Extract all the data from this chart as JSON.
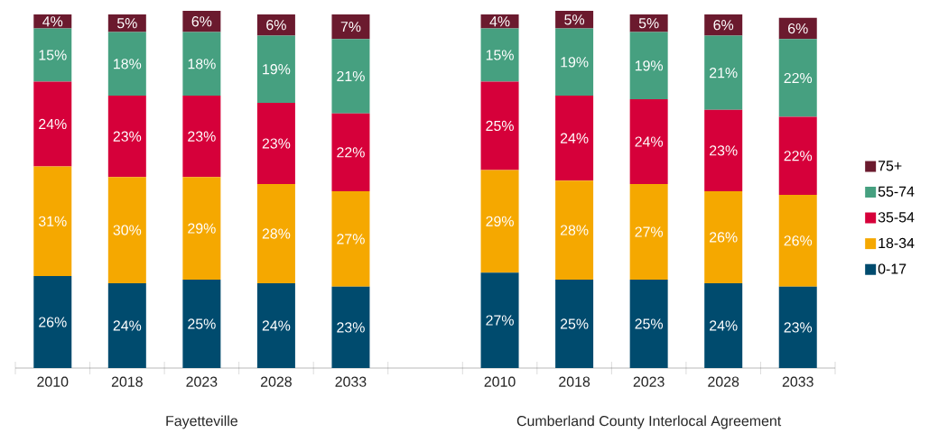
{
  "chart_data": {
    "type": "bar",
    "stacked": true,
    "legend": "right",
    "categories": [
      "2010",
      "2018",
      "2023",
      "2028",
      "2033",
      null,
      "2010",
      "2018",
      "2023",
      "2028",
      "2033"
    ],
    "series": [
      {
        "name": "0-17",
        "color": "#004b6e",
        "values": [
          26,
          24,
          25,
          24,
          23,
          null,
          27,
          25,
          25,
          24,
          23
        ],
        "value_labels": [
          "26%",
          "24%",
          "25%",
          "24%",
          "23%",
          null,
          "27%",
          "25%",
          "25%",
          "24%",
          "23%"
        ]
      },
      {
        "name": "18-34",
        "color": "#f5a800",
        "values": [
          31,
          30,
          29,
          28,
          27,
          null,
          29,
          28,
          27,
          26,
          26
        ],
        "value_labels": [
          "31%",
          "30%",
          "29%",
          "28%",
          "27%",
          null,
          "29%",
          "28%",
          "27%",
          "26%",
          "26%"
        ]
      },
      {
        "name": "35-54",
        "color": "#d6003a",
        "values": [
          24,
          23,
          23,
          23,
          22,
          null,
          25,
          24,
          24,
          23,
          22
        ],
        "value_labels": [
          "24%",
          "23%",
          "23%",
          "23%",
          "22%",
          null,
          "25%",
          "24%",
          "24%",
          "23%",
          "22%"
        ]
      },
      {
        "name": "55-74",
        "color": "#46a080",
        "values": [
          15,
          18,
          18,
          19,
          21,
          null,
          15,
          19,
          19,
          21,
          22
        ],
        "value_labels": [
          "15%",
          "18%",
          "18%",
          "19%",
          "21%",
          null,
          "15%",
          "19%",
          "19%",
          "21%",
          "22%"
        ]
      },
      {
        "name": "75+",
        "color": "#6b1a2e",
        "values": [
          4,
          5,
          6,
          6,
          7,
          null,
          4,
          5,
          5,
          6,
          6
        ],
        "value_labels": [
          "4%",
          "5%",
          "6%",
          "6%",
          "7%",
          null,
          "4%",
          "5%",
          "5%",
          "6%",
          "6%"
        ]
      }
    ],
    "annotations": [
      "Fayetteville",
      "Cumberland County Interlocal Agreement"
    ]
  }
}
